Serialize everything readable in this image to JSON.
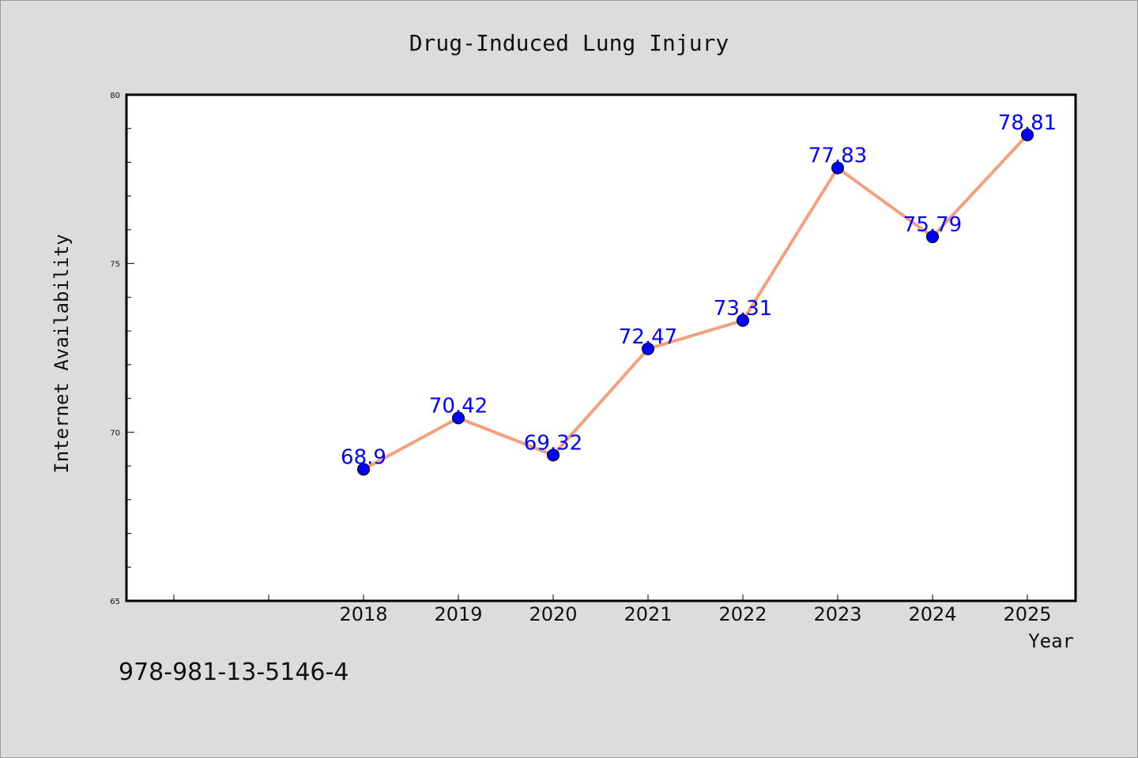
{
  "chart_data": {
    "type": "line",
    "title": "Drug-Induced Lung Injury",
    "xlabel": "Year",
    "ylabel": "Internet Availability",
    "categories": [
      "2018",
      "2019",
      "2020",
      "2021",
      "2022",
      "2023",
      "2024",
      "2025"
    ],
    "series": [
      {
        "values": [
          68.9,
          70.42,
          69.32,
          72.47,
          73.31,
          77.83,
          75.79,
          78.81
        ],
        "labels": [
          "68.9",
          "70.42",
          "69.32",
          "72.47",
          "73.31",
          "77.83",
          "75.79",
          "78.81"
        ],
        "line_color": "#f4a07c",
        "marker_color": "#0000ff"
      }
    ],
    "ylim": [
      65,
      80
    ],
    "yticks": [
      "65",
      "70",
      "75",
      "80"
    ],
    "grid": false,
    "legend": "none"
  },
  "caption": "978-981-13-5146-4"
}
